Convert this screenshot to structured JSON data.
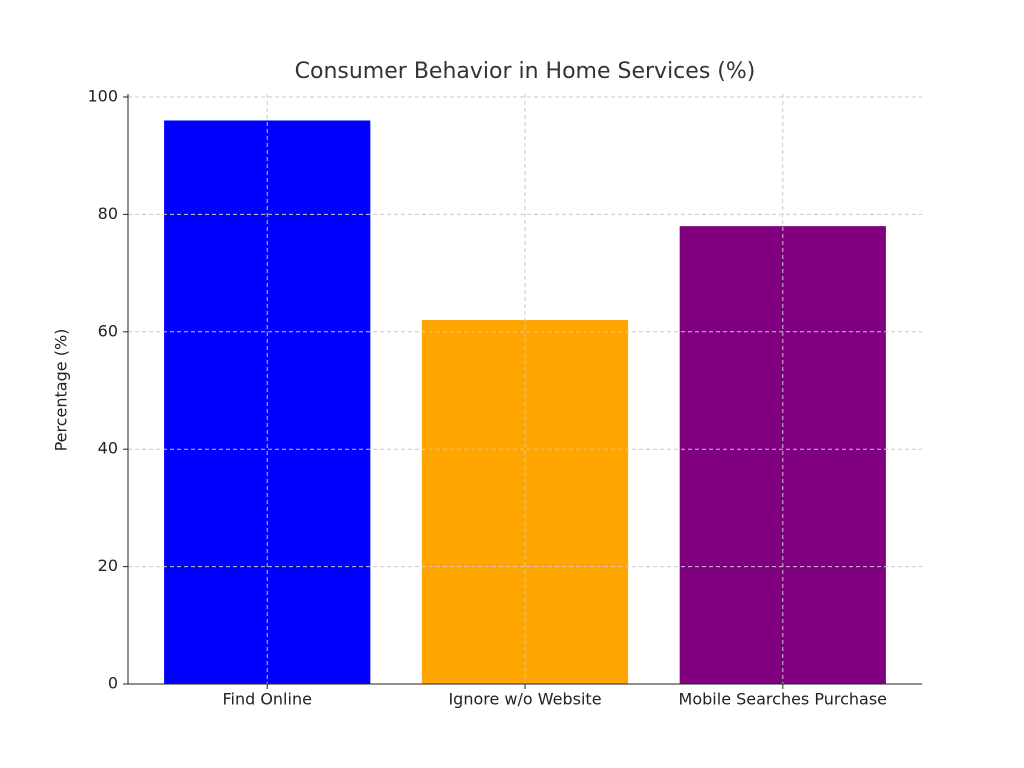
{
  "chart_data": {
    "type": "bar",
    "title": "Consumer Behavior in Home Services (%)",
    "ylabel": "Percentage (%)",
    "categories": [
      "Find Online",
      "Ignore w/o Website",
      "Mobile Searches Purchase"
    ],
    "values": [
      96,
      62,
      78
    ],
    "colors": [
      "#0000ff",
      "#ffa500",
      "#800080"
    ],
    "ylim": [
      0,
      100
    ],
    "yticks": [
      0,
      20,
      40,
      60,
      80,
      100
    ],
    "grid": true
  }
}
